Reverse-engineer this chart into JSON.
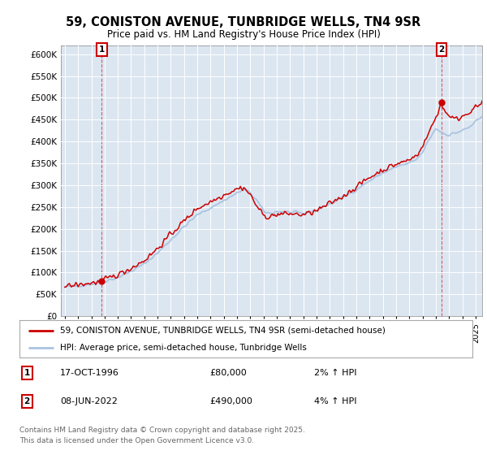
{
  "title": "59, CONISTON AVENUE, TUNBRIDGE WELLS, TN4 9SR",
  "subtitle": "Price paid vs. HM Land Registry's House Price Index (HPI)",
  "hpi_color": "#aac4e0",
  "price_color": "#cc0000",
  "bg_color": "#ffffff",
  "plot_bg_color": "#dce6f1",
  "grid_color": "#ffffff",
  "annotation_box_color": "#cc0000",
  "legend_label_price": "59, CONISTON AVENUE, TUNBRIDGE WELLS, TN4 9SR (semi-detached house)",
  "legend_label_hpi": "HPI: Average price, semi-detached house, Tunbridge Wells",
  "annotation1_date": "17-OCT-1996",
  "annotation1_price": "£80,000",
  "annotation1_hpi": "2% ↑ HPI",
  "annotation2_date": "08-JUN-2022",
  "annotation2_price": "£490,000",
  "annotation2_hpi": "4% ↑ HPI",
  "footer": "Contains HM Land Registry data © Crown copyright and database right 2025.\nThis data is licensed under the Open Government Licence v3.0.",
  "sale1_year": 1996.79,
  "sale1_value": 80000,
  "sale2_year": 2022.44,
  "sale2_value": 490000,
  "ylim": [
    0,
    620000
  ],
  "yticks": [
    0,
    50000,
    100000,
    150000,
    200000,
    250000,
    300000,
    350000,
    400000,
    450000,
    500000,
    550000,
    600000
  ],
  "ytick_labels": [
    "£0",
    "£50K",
    "£100K",
    "£150K",
    "£200K",
    "£250K",
    "£300K",
    "£350K",
    "£400K",
    "£450K",
    "£500K",
    "£550K",
    "£600K"
  ],
  "xmin": 1993.7,
  "xmax": 2025.5
}
